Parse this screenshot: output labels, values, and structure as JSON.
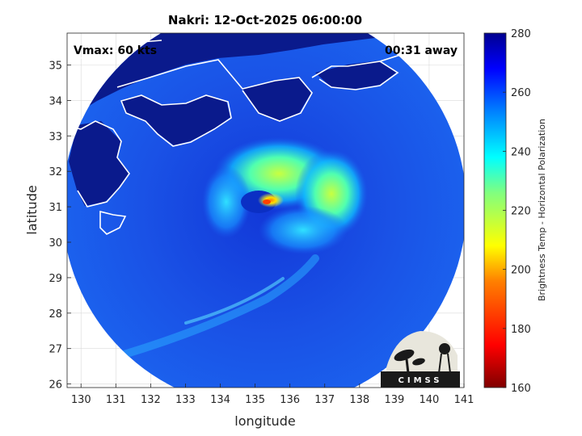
{
  "title": "Nakri: 12-Oct-2025 06:00:00",
  "vmax_label": "Vmax: 60 kts",
  "time_label": "00:31 away",
  "xlabel": "longitude",
  "ylabel": "latitude",
  "colorbar_label": "Brightness Temp - Horizontal Polarization",
  "logo_text": "CIMSS",
  "x_ticks": [
    "130",
    "131",
    "132",
    "133",
    "134",
    "135",
    "136",
    "137",
    "138",
    "139",
    "140",
    "141"
  ],
  "y_ticks": [
    "26",
    "27",
    "28",
    "29",
    "30",
    "31",
    "32",
    "33",
    "34",
    "35"
  ],
  "colorbar_ticks": [
    "280",
    "260",
    "240",
    "220",
    "200",
    "180",
    "160"
  ],
  "x_range": [
    129.6,
    141
  ],
  "y_range": [
    25.9,
    35.9
  ],
  "colorbar_range": [
    160,
    280
  ],
  "colormap": [
    "#7f0000",
    "#ff0000",
    "#ff8000",
    "#ffff00",
    "#80ff80",
    "#00ffff",
    "#0080ff",
    "#0000ff",
    "#00008f"
  ],
  "colors": {
    "land": "#0a1a8c",
    "ocean_mean": "#1a50e0",
    "coast": "#ffffff"
  }
}
